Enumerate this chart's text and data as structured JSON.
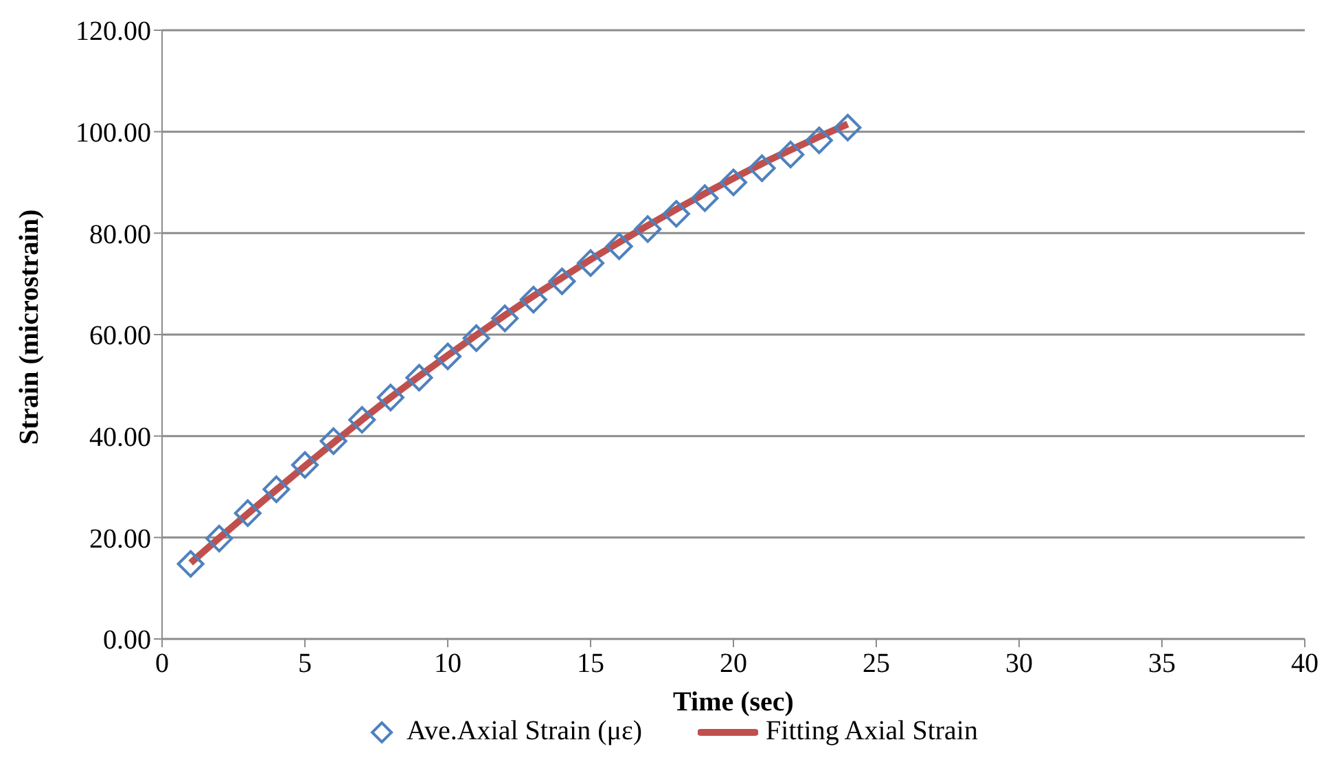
{
  "chart_data": {
    "type": "scatter",
    "xlabel": "Time (sec)",
    "ylabel": "Strain (microstrain)",
    "xlim": [
      0,
      40
    ],
    "xticks": [
      0,
      5,
      10,
      15,
      20,
      25,
      30,
      35,
      40
    ],
    "ylim": [
      0,
      120
    ],
    "yticks": [
      {
        "value": 0,
        "label": "0.00"
      },
      {
        "value": 20,
        "label": "20.00"
      },
      {
        "value": 40,
        "label": "40.00"
      },
      {
        "value": 60,
        "label": "60.00"
      },
      {
        "value": 80,
        "label": "80.00"
      },
      {
        "value": 100,
        "label": "100.00"
      },
      {
        "value": 120,
        "label": "120.00"
      }
    ],
    "grid": "y",
    "legend": "bottom",
    "x": [
      1,
      2,
      3,
      4,
      5,
      6,
      7,
      8,
      9,
      10,
      11,
      12,
      13,
      14,
      15,
      16,
      17,
      18,
      19,
      20,
      21,
      22,
      23,
      24
    ],
    "series": [
      {
        "name": "Ave.Axial Strain (με)",
        "type": "scatter",
        "marker": "diamond",
        "color": "#4f81bd",
        "values": [
          14.8,
          19.8,
          24.8,
          29.5,
          34.3,
          39,
          43.2,
          47.6,
          51.5,
          55.7,
          59.3,
          63.2,
          66.9,
          70.5,
          74.1,
          77.4,
          80.8,
          83.8,
          86.9,
          90,
          92.8,
          95.5,
          98.3,
          100.8
        ]
      },
      {
        "name": "Fitting Axial Strain",
        "type": "line",
        "marker": "none",
        "line_style": "solid",
        "color": "#c0504d",
        "values": [
          15,
          19.9,
          24.7,
          29.4,
          34.1,
          38.7,
          43.2,
          47.6,
          51.8,
          55.9,
          59.9,
          63.8,
          67.6,
          71.2,
          74.8,
          78.2,
          81.5,
          84.7,
          87.8,
          90.8,
          93.7,
          96.4,
          99,
          101.5
        ]
      }
    ]
  }
}
